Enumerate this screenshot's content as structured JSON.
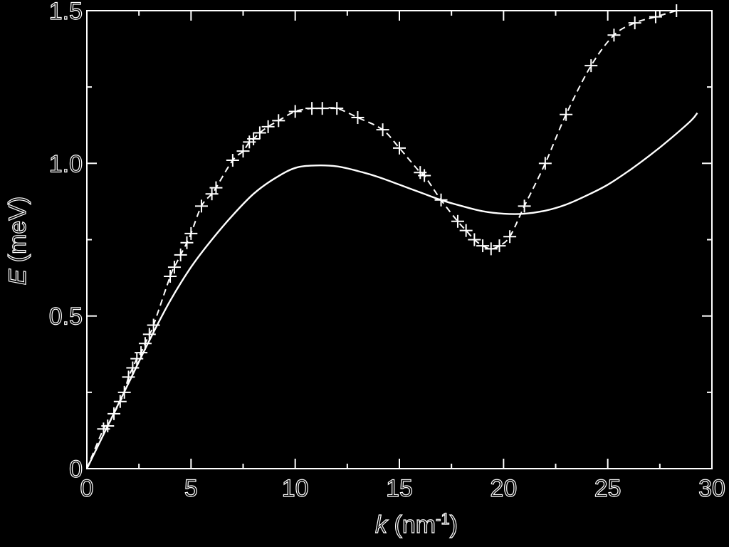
{
  "chart_data": {
    "type": "line",
    "xlabel": {
      "var": "k",
      "unit_open": " (nm",
      "sup": "-1",
      "unit_close": ")"
    },
    "ylabel": {
      "var": "E",
      "unit": " (meV)"
    },
    "xlim": [
      0,
      30
    ],
    "ylim": [
      0,
      1.5
    ],
    "xticks": [
      {
        "value": 0,
        "label": "0"
      },
      {
        "value": 5,
        "label": "5"
      },
      {
        "value": 10,
        "label": "10"
      },
      {
        "value": 15,
        "label": "15"
      },
      {
        "value": 20,
        "label": "20"
      },
      {
        "value": 25,
        "label": "25"
      },
      {
        "value": 30,
        "label": "30"
      }
    ],
    "yticks": [
      {
        "value": 0,
        "label": "0"
      },
      {
        "value": 0.5,
        "label": "0.5"
      },
      {
        "value": 1.0,
        "label": "1.0"
      },
      {
        "value": 1.5,
        "label": "1.5"
      }
    ],
    "minor_ticks": {
      "x": 2.5,
      "y": 0.25
    },
    "grid": false,
    "colors": {
      "background": "#000000",
      "foreground": "#ffffff"
    },
    "series": [
      {
        "style": "solid",
        "points": [
          [
            0,
            0
          ],
          [
            1,
            0.14
          ],
          [
            2,
            0.28
          ],
          [
            3,
            0.42
          ],
          [
            4,
            0.55
          ],
          [
            5,
            0.66
          ],
          [
            6,
            0.75
          ],
          [
            7,
            0.83
          ],
          [
            8,
            0.9
          ],
          [
            9,
            0.95
          ],
          [
            10,
            0.985
          ],
          [
            11,
            0.993
          ],
          [
            12,
            0.99
          ],
          [
            13,
            0.975
          ],
          [
            14,
            0.955
          ],
          [
            15,
            0.93
          ],
          [
            16,
            0.905
          ],
          [
            17,
            0.88
          ],
          [
            18,
            0.86
          ],
          [
            19,
            0.843
          ],
          [
            20,
            0.835
          ],
          [
            21,
            0.835
          ],
          [
            22,
            0.845
          ],
          [
            23,
            0.865
          ],
          [
            24,
            0.895
          ],
          [
            25,
            0.93
          ],
          [
            26,
            0.975
          ],
          [
            27,
            1.025
          ],
          [
            28,
            1.08
          ],
          [
            29,
            1.14
          ],
          [
            29.3,
            1.165
          ]
        ]
      },
      {
        "style": "dashed",
        "marker": "plus",
        "points": [
          [
            0,
            0
          ],
          [
            0.8,
            0.13
          ],
          [
            1.0,
            0.14
          ],
          [
            1.3,
            0.18
          ],
          [
            1.6,
            0.22
          ],
          [
            1.8,
            0.25
          ],
          [
            2.0,
            0.3
          ],
          [
            2.2,
            0.33
          ],
          [
            2.4,
            0.36
          ],
          [
            2.6,
            0.38
          ],
          [
            2.8,
            0.41
          ],
          [
            3.0,
            0.44
          ],
          [
            3.2,
            0.47
          ],
          [
            4.0,
            0.63
          ],
          [
            4.2,
            0.66
          ],
          [
            4.5,
            0.7
          ],
          [
            4.8,
            0.74
          ],
          [
            5.0,
            0.77
          ],
          [
            5.5,
            0.86
          ],
          [
            6.0,
            0.9
          ],
          [
            6.2,
            0.92
          ],
          [
            7.0,
            1.01
          ],
          [
            7.5,
            1.04
          ],
          [
            7.8,
            1.07
          ],
          [
            8.0,
            1.08
          ],
          [
            8.3,
            1.1
          ],
          [
            8.7,
            1.12
          ],
          [
            9.2,
            1.14
          ],
          [
            10.0,
            1.17
          ],
          [
            10.8,
            1.18
          ],
          [
            11.3,
            1.18
          ],
          [
            12.0,
            1.18
          ],
          [
            13.0,
            1.15
          ],
          [
            14.2,
            1.11
          ],
          [
            15.0,
            1.05
          ],
          [
            16.0,
            0.97
          ],
          [
            16.2,
            0.96
          ],
          [
            17.0,
            0.88
          ],
          [
            17.8,
            0.81
          ],
          [
            18.2,
            0.78
          ],
          [
            18.6,
            0.75
          ],
          [
            19.0,
            0.73
          ],
          [
            19.4,
            0.72
          ],
          [
            19.8,
            0.73
          ],
          [
            20.3,
            0.76
          ],
          [
            21.0,
            0.86
          ],
          [
            22.0,
            1.0
          ],
          [
            23.0,
            1.16
          ],
          [
            24.2,
            1.32
          ],
          [
            25.3,
            1.42
          ],
          [
            26.3,
            1.46
          ],
          [
            27.3,
            1.48
          ],
          [
            28.3,
            1.5
          ]
        ]
      }
    ]
  }
}
